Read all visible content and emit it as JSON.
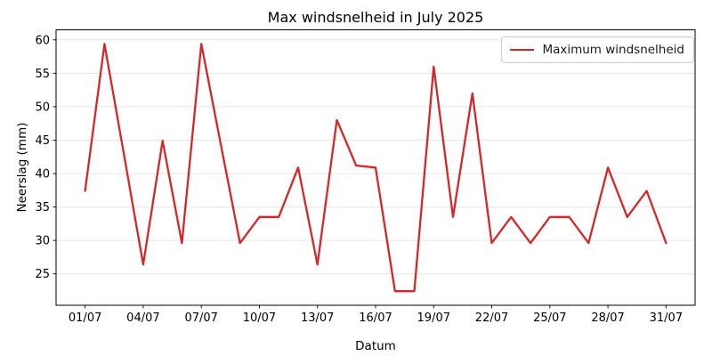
{
  "chart_data": {
    "type": "line",
    "title": "Max windsnelheid in July 2025",
    "xlabel": "Datum",
    "ylabel": "Neerslag (mm)",
    "x_day": [
      1,
      2,
      3,
      4,
      5,
      6,
      7,
      8,
      9,
      10,
      11,
      12,
      13,
      14,
      15,
      16,
      17,
      18,
      19,
      20,
      21,
      22,
      23,
      24,
      25,
      26,
      27,
      28,
      29,
      30,
      31
    ],
    "series": [
      {
        "name": "Maximum windsnelheid",
        "color": "#d62728",
        "line_width": 2.3,
        "values": [
          37.4,
          59.4,
          42.9,
          26.4,
          44.9,
          29.6,
          59.4,
          44.5,
          29.6,
          33.5,
          33.5,
          40.9,
          26.4,
          48.0,
          41.2,
          40.9,
          22.4,
          22.4,
          56.0,
          33.5,
          52.0,
          29.6,
          33.5,
          29.6,
          33.5,
          33.5,
          29.6,
          40.9,
          33.5,
          37.4,
          29.6
        ]
      }
    ],
    "x_tick_days": [
      1,
      4,
      7,
      10,
      13,
      16,
      19,
      22,
      25,
      28,
      31
    ],
    "x_tick_labels": [
      "01/07",
      "04/07",
      "07/07",
      "10/07",
      "13/07",
      "16/07",
      "19/07",
      "22/07",
      "25/07",
      "28/07",
      "31/07"
    ],
    "y_ticks": [
      25,
      30,
      35,
      40,
      45,
      50,
      55,
      60
    ],
    "xlim_days": [
      -0.5,
      32.5
    ],
    "ylim": [
      20.3,
      61.5
    ],
    "grid": "horizontal",
    "legend": {
      "position": "upper right",
      "entries": [
        {
          "label": "Maximum windsnelheid",
          "color": "#d62728"
        }
      ]
    },
    "colors": {
      "line": "#d62728",
      "grid": "#e6e6e6",
      "spine": "#000000",
      "background": "#ffffff",
      "legend_border": "#cccccc"
    }
  }
}
